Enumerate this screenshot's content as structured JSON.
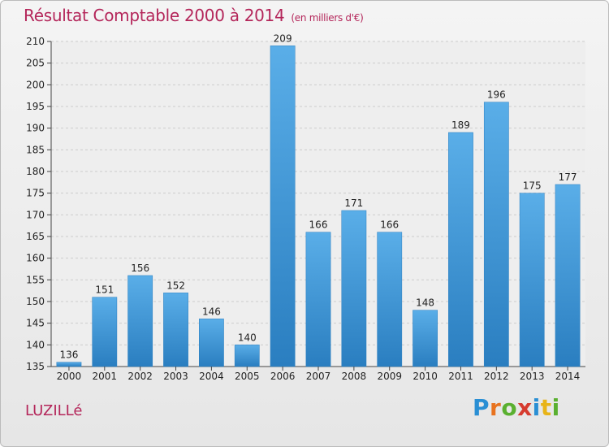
{
  "header": {
    "title": "Résultat Comptable 2000 à 2014",
    "subtitle": "(en milliers d'€)"
  },
  "footer": {
    "town": "LUZILLé",
    "logo": "Proxiti"
  },
  "colors": {
    "accent": "#b4265a",
    "bar_top": "#5aaee8",
    "bar_bottom": "#2a7ec0"
  },
  "chart_data": {
    "type": "bar",
    "title": "Résultat Comptable 2000 à 2014",
    "subtitle": "(en milliers d'€)",
    "xlabel": "",
    "ylabel": "",
    "categories": [
      "2000",
      "2001",
      "2002",
      "2003",
      "2004",
      "2005",
      "2006",
      "2007",
      "2008",
      "2009",
      "2010",
      "2011",
      "2012",
      "2013",
      "2014"
    ],
    "values": [
      136,
      151,
      156,
      152,
      146,
      140,
      209,
      166,
      171,
      166,
      148,
      189,
      196,
      175,
      177
    ],
    "ylim": [
      135,
      210
    ],
    "yticks": [
      135,
      140,
      145,
      150,
      155,
      160,
      165,
      170,
      175,
      180,
      185,
      190,
      195,
      200,
      205,
      210
    ],
    "grid": true,
    "legend": "none"
  }
}
